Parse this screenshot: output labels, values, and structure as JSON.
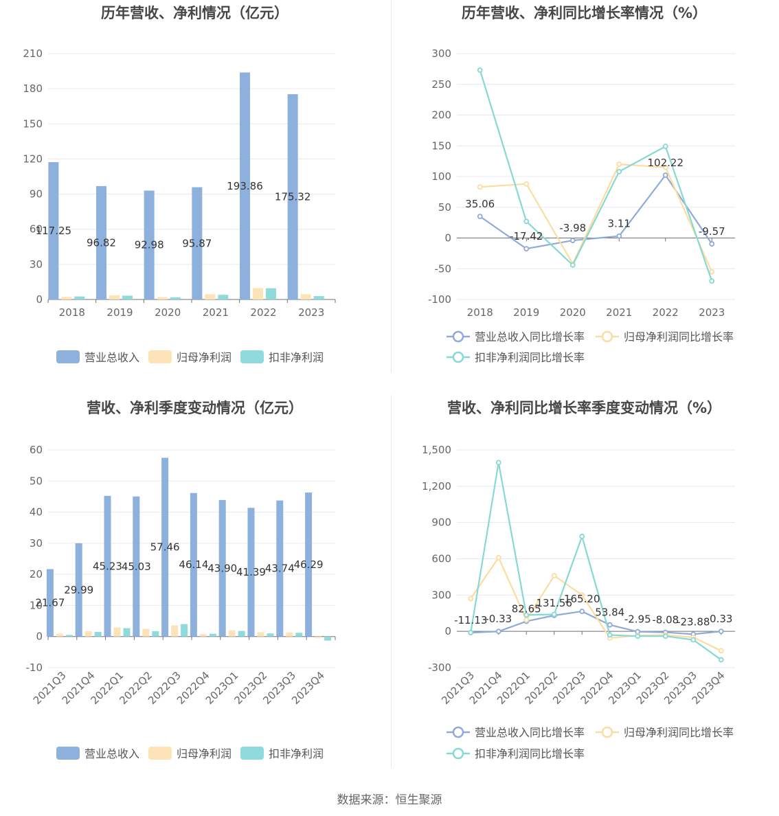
{
  "footer": {
    "source_label": "数据来源：恒生聚源"
  },
  "chart_data": [
    {
      "type": "bar",
      "title": "历年营收、净利情况（亿元）",
      "categories": [
        "2018",
        "2019",
        "2020",
        "2021",
        "2022",
        "2023"
      ],
      "ylim": [
        0,
        210
      ],
      "yticks": [
        0,
        30,
        60,
        90,
        120,
        150,
        180,
        210
      ],
      "grid": true,
      "legend_position": "bottom",
      "series": [
        {
          "name": "营业总收入",
          "color": "#8eb0dc",
          "values": [
            117.25,
            96.82,
            92.98,
            95.87,
            193.86,
            175.32
          ],
          "labels": [
            "117.25",
            "96.82",
            "92.98",
            "95.87",
            "193.86",
            "175.32"
          ]
        },
        {
          "name": "归母净利润",
          "color": "#fde4b8",
          "values": [
            2.2,
            3.6,
            2.0,
            4.5,
            9.8,
            4.5
          ]
        },
        {
          "name": "扣非净利润",
          "color": "#8fdbdb",
          "values": [
            2.6,
            3.3,
            1.9,
            4.0,
            9.6,
            2.9
          ]
        }
      ]
    },
    {
      "type": "line",
      "title": "历年营收、净利同比增长率情况（%）",
      "categories": [
        "2018",
        "2019",
        "2020",
        "2021",
        "2022",
        "2023"
      ],
      "ylim": [
        -100,
        300
      ],
      "yticks": [
        -100,
        -50,
        0,
        50,
        100,
        150,
        200,
        250,
        300
      ],
      "grid": true,
      "legend_position": "bottom",
      "series": [
        {
          "name": "营业总收入同比增长率",
          "color": "#8eaad8",
          "values": [
            35.06,
            -17.42,
            -3.98,
            3.11,
            102.22,
            -9.57
          ],
          "labels": [
            "35.06",
            "-17.42",
            "-3.98",
            "3.11",
            "102.22",
            "-9.57"
          ]
        },
        {
          "name": "归母净利润同比增长率",
          "color": "#fddca0",
          "values": [
            83,
            88,
            -42,
            120,
            115,
            -55
          ]
        },
        {
          "name": "扣非净利润同比增长率",
          "color": "#86d8d4",
          "values": [
            273,
            27,
            -44,
            108,
            149,
            -70
          ]
        }
      ]
    },
    {
      "type": "bar",
      "title": "营收、净利季度变动情况（亿元）",
      "categories": [
        "2021Q3",
        "2021Q4",
        "2022Q1",
        "2022Q2",
        "2022Q3",
        "2022Q4",
        "2023Q1",
        "2023Q2",
        "2023Q3",
        "2023Q4"
      ],
      "ylim": [
        -10,
        60
      ],
      "yticks": [
        -10,
        0,
        10,
        20,
        30,
        40,
        50,
        60
      ],
      "grid": true,
      "legend_position": "bottom",
      "series": [
        {
          "name": "营业总收入",
          "color": "#8eb0dc",
          "values": [
            21.67,
            29.99,
            45.23,
            45.03,
            57.46,
            46.14,
            43.9,
            41.39,
            43.74,
            46.29
          ],
          "labels": [
            "21.67",
            "29.99",
            "45.23",
            "45.03",
            "57.46",
            "46.14",
            "43.90",
            "41.39",
            "43.74",
            "46.29"
          ]
        },
        {
          "name": "归母净利润",
          "color": "#fde4b8",
          "values": [
            0.9,
            1.7,
            2.9,
            2.5,
            3.6,
            0.8,
            2.0,
            1.4,
            1.3,
            -0.5
          ]
        },
        {
          "name": "扣非净利润",
          "color": "#8fdbdb",
          "values": [
            0.5,
            1.5,
            2.7,
            1.7,
            4.0,
            0.9,
            1.8,
            1.0,
            1.2,
            -1.3
          ]
        }
      ]
    },
    {
      "type": "line",
      "title": "营收、净利同比增长率季度变动情况（%）",
      "categories": [
        "2021Q3",
        "2021Q4",
        "2022Q1",
        "2022Q2",
        "2022Q3",
        "2022Q4",
        "2023Q1",
        "2023Q2",
        "2023Q3",
        "2023Q4"
      ],
      "ylim": [
        -300,
        1500
      ],
      "yticks": [
        -300,
        0,
        300,
        600,
        900,
        1200,
        1500
      ],
      "yticklabels": [
        "-300",
        "0",
        "300",
        "600",
        "900",
        "1,200",
        "1,500"
      ],
      "grid": true,
      "legend_position": "bottom",
      "series": [
        {
          "name": "营业总收入同比增长率",
          "color": "#8eaad8",
          "values": [
            -11.13,
            -0.33,
            82.65,
            131.56,
            165.2,
            53.84,
            -2.95,
            -8.08,
            -23.88,
            0.33
          ],
          "labels": [
            "-11.13",
            "-0.33",
            "82.65",
            "131.56",
            "165.20",
            "53.84",
            "-2.95",
            "-8.08",
            "-23.88",
            "0.33"
          ]
        },
        {
          "name": "归母净利润同比增长率",
          "color": "#fddca0",
          "values": [
            270,
            610,
            95,
            460,
            300,
            -55,
            -35,
            -30,
            -50,
            -160
          ]
        },
        {
          "name": "扣非净利润同比增长率",
          "color": "#86d8d4",
          "values": [
            -10,
            1395,
            135,
            140,
            785,
            -30,
            -40,
            -40,
            -70,
            -235
          ]
        }
      ]
    }
  ]
}
